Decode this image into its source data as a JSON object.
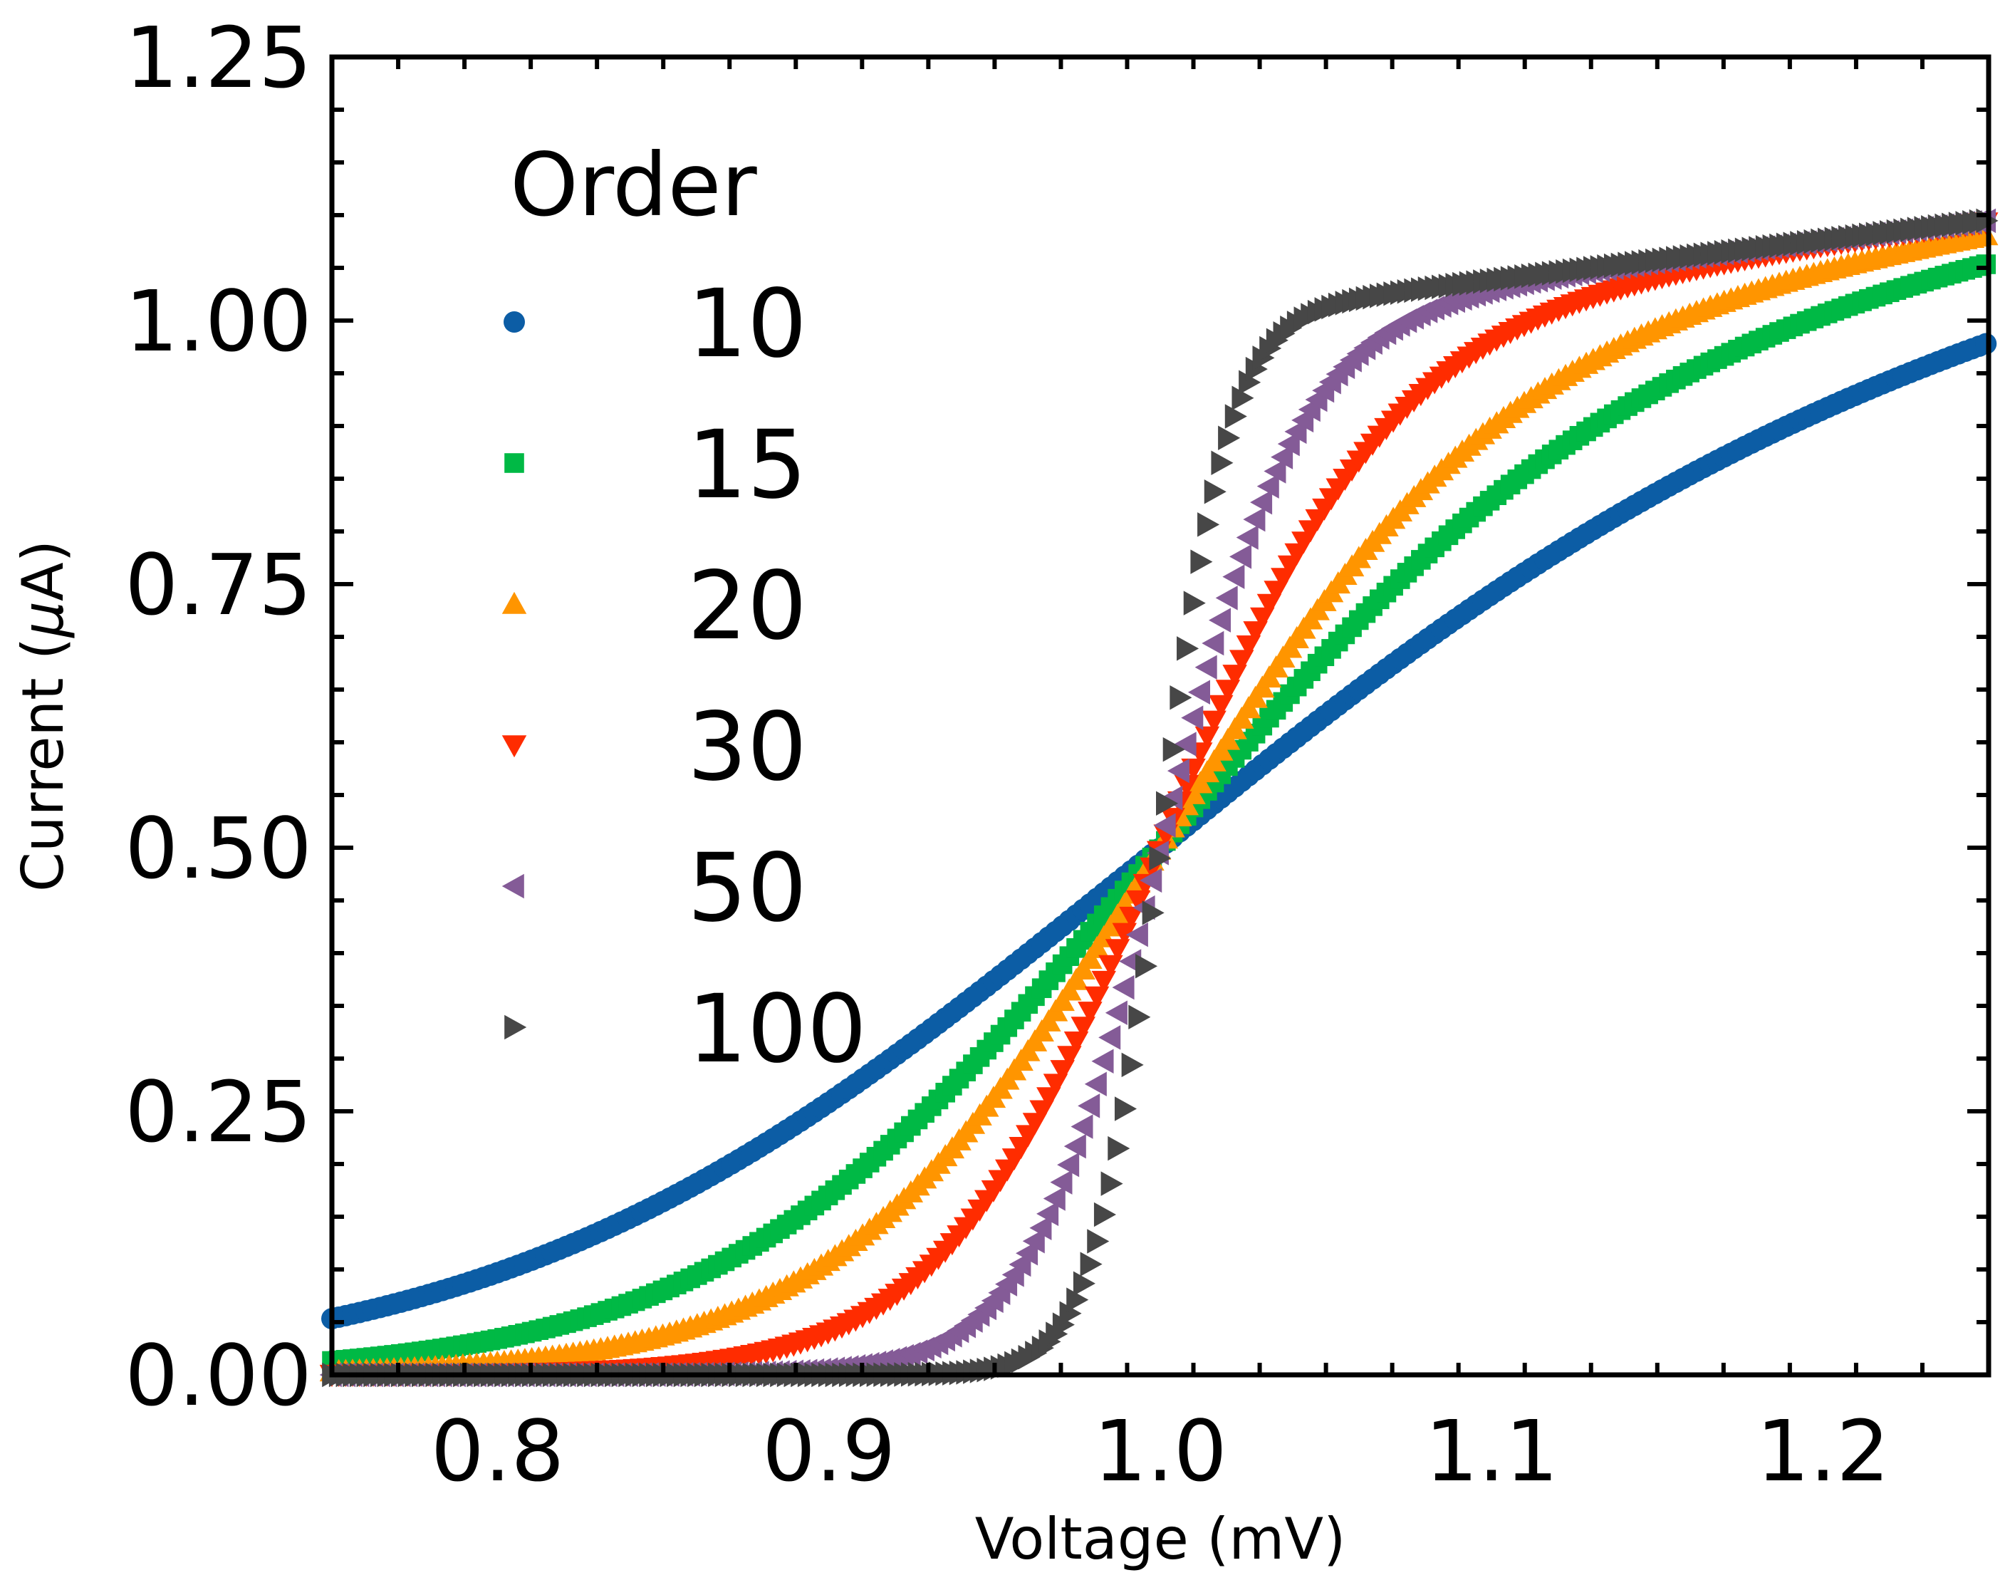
{
  "chart_data": {
    "type": "scatter",
    "xlabel": "Voltage (mV)",
    "ylabel_main": "Current (",
    "ylabel_mu": "μ",
    "ylabel_tail": "A)",
    "xlim": [
      0.75,
      1.25
    ],
    "ylim": [
      0.0,
      1.25
    ],
    "xticks": [
      0.8,
      0.9,
      1.0,
      1.1,
      1.2
    ],
    "xtick_labels": [
      "0.8",
      "0.9",
      "1.0",
      "1.1",
      "1.2"
    ],
    "yticks": [
      0.0,
      0.25,
      0.5,
      0.75,
      1.0,
      1.25
    ],
    "ytick_labels": [
      "0.00",
      "0.25",
      "0.50",
      "0.75",
      "1.00",
      "1.25"
    ],
    "grid": false,
    "legend_position": "upper-left",
    "legend_title": "Order",
    "series_order_values": [
      10,
      15,
      20,
      30,
      50,
      100
    ],
    "x_range": [
      0.75,
      1.25
    ],
    "x_step": 0.00208,
    "series": [
      {
        "name": "10",
        "marker": "circle",
        "color": "#0C5DA5"
      },
      {
        "name": "15",
        "marker": "square",
        "color": "#00B945"
      },
      {
        "name": "20",
        "marker": "triangle-up",
        "color": "#FF9500"
      },
      {
        "name": "30",
        "marker": "triangle-down",
        "color": "#FF2C00"
      },
      {
        "name": "50",
        "marker": "triangle-left",
        "color": "#845B97"
      },
      {
        "name": "100",
        "marker": "triangle-right",
        "color": "#474747"
      }
    ]
  }
}
